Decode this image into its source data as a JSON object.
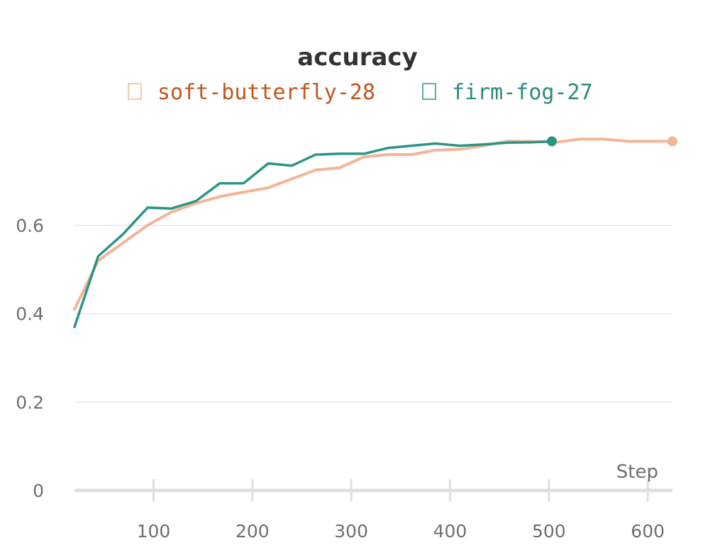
{
  "chart_data": {
    "type": "line",
    "title": "accuracy",
    "xlabel": "Step",
    "ylabel": "",
    "xlim": [
      20,
      625
    ],
    "ylim": [
      0,
      0.85
    ],
    "x_ticks": [
      100,
      200,
      300,
      400,
      500,
      600
    ],
    "y_ticks": [
      0,
      0.2,
      0.4,
      0.6
    ],
    "y_tick_labels": [
      "0",
      "0.2",
      "0.4",
      "0.6"
    ],
    "grid": true,
    "legend_placement": "top-center",
    "series": [
      {
        "name": "soft-butterfly-28",
        "color": "#f2b596",
        "label_color": "#c0561c",
        "legend_icon": "square-outline-icon",
        "x": [
          20,
          44,
          69,
          94,
          118,
          143,
          167,
          191,
          216,
          240,
          264,
          288,
          313,
          337,
          361,
          385,
          410,
          434,
          458,
          483,
          507,
          531,
          555,
          580,
          604,
          625
        ],
        "y": [
          0.41,
          0.52,
          0.56,
          0.6,
          0.63,
          0.65,
          0.665,
          0.675,
          0.685,
          0.705,
          0.725,
          0.73,
          0.755,
          0.76,
          0.76,
          0.77,
          0.772,
          0.78,
          0.79,
          0.79,
          0.788,
          0.795,
          0.795,
          0.79,
          0.79,
          0.79
        ]
      },
      {
        "name": "firm-fog-27",
        "color": "#2a9585",
        "label_color": "#2a8a7c",
        "legend_icon": "square-outline-icon",
        "x": [
          20,
          44,
          69,
          94,
          118,
          143,
          167,
          191,
          216,
          240,
          264,
          288,
          313,
          337,
          361,
          385,
          410,
          434,
          458,
          483,
          503
        ],
        "y": [
          0.37,
          0.53,
          0.58,
          0.64,
          0.638,
          0.655,
          0.695,
          0.695,
          0.74,
          0.735,
          0.76,
          0.762,
          0.762,
          0.775,
          0.78,
          0.785,
          0.78,
          0.783,
          0.787,
          0.788,
          0.79
        ]
      }
    ]
  }
}
